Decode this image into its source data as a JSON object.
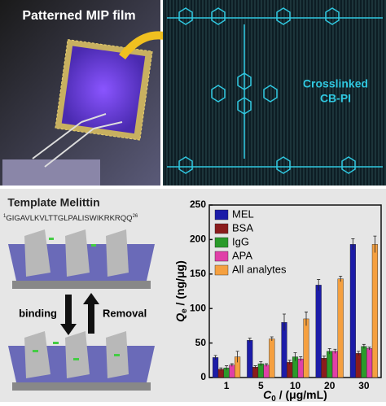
{
  "labels": {
    "photo_title": "Patterned MIP film",
    "structure_label_1": "Crosslinked",
    "structure_label_2": "CB-PI",
    "template_title": "Template Melittin",
    "sequence_start": "1",
    "sequence": "GIGAVLKVLTTGLPALISWIKRKRQQ",
    "sequence_end": "26",
    "binding": "binding",
    "removal": "Removal"
  },
  "chart_data": {
    "type": "bar",
    "y_label": {
      "symbol": "Q",
      "sub": "e",
      "unit": " / (ng/μg)"
    },
    "x_label": {
      "symbol": "C",
      "sub": "0",
      "unit": " / (μg/mL)"
    },
    "categories": [
      "1",
      "5",
      "10",
      "20",
      "30"
    ],
    "series": [
      {
        "name": "MEL",
        "color": "#1c1ca8",
        "values": [
          29,
          54,
          80,
          134,
          193
        ],
        "errors": [
          3,
          3,
          12,
          8,
          8
        ]
      },
      {
        "name": "BSA",
        "color": "#8b1c1c",
        "values": [
          12,
          15,
          22,
          28,
          35
        ],
        "errors": [
          2,
          2,
          3,
          3,
          3
        ]
      },
      {
        "name": "IgG",
        "color": "#2a9a2a",
        "values": [
          14,
          20,
          30,
          38,
          45
        ],
        "errors": [
          3,
          3,
          6,
          4,
          3
        ]
      },
      {
        "name": "APA",
        "color": "#e040a8",
        "values": [
          18,
          18,
          27,
          38,
          42
        ],
        "errors": [
          2,
          2,
          3,
          3,
          2
        ]
      },
      {
        "name": "All analytes",
        "color": "#f5a040",
        "values": [
          30,
          56,
          85,
          143,
          193
        ],
        "errors": [
          8,
          3,
          10,
          4,
          12
        ]
      }
    ],
    "ylim": [
      0,
      250
    ],
    "yticks": [
      0,
      50,
      100,
      150,
      200,
      250
    ],
    "legend": "upper-left"
  }
}
